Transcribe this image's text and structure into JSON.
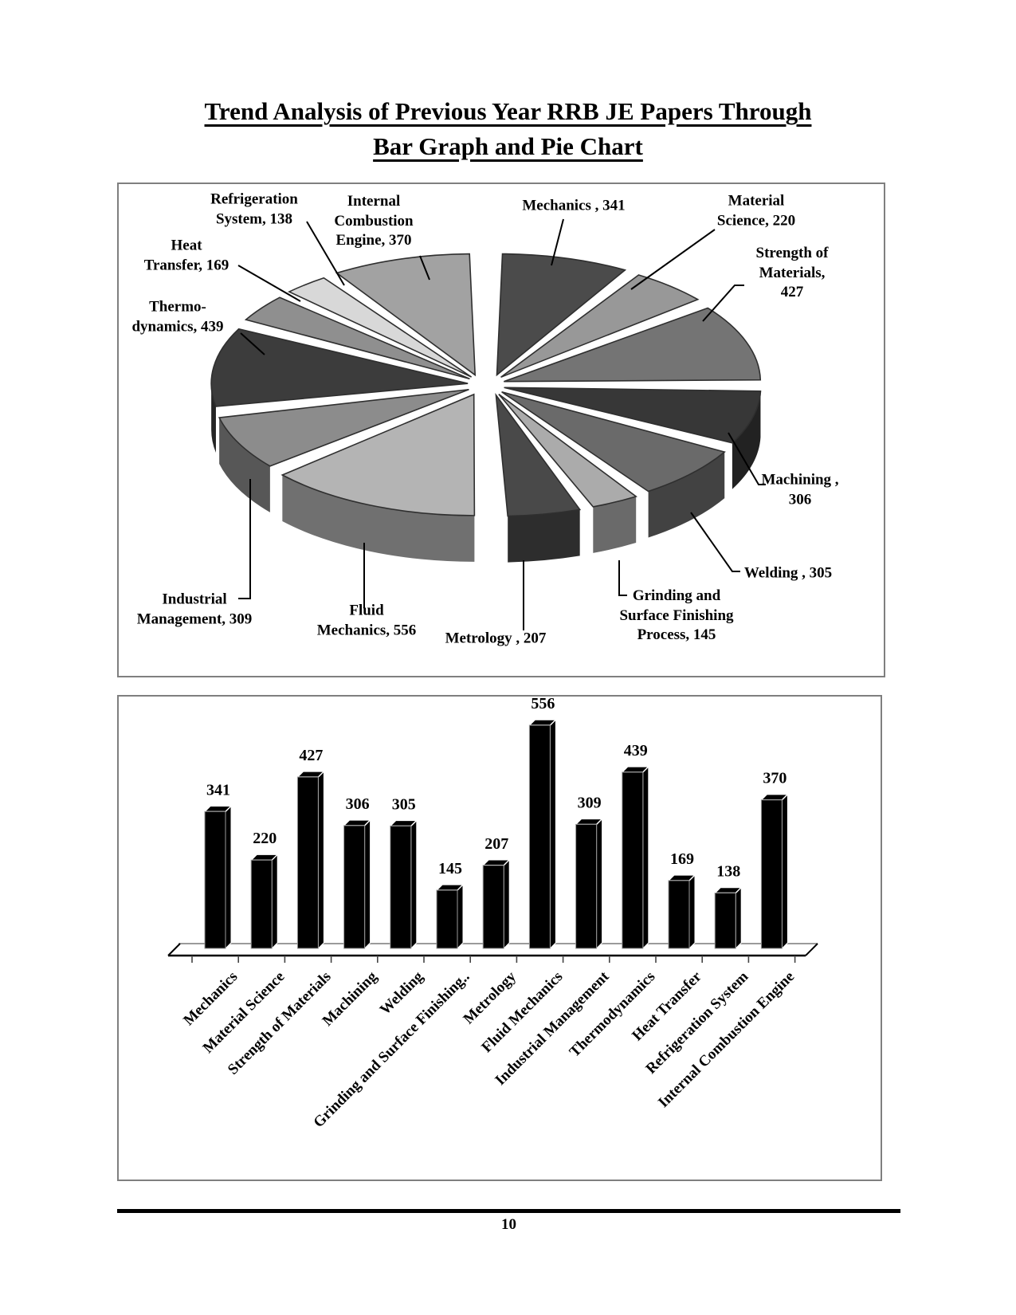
{
  "page": {
    "title_line_1": "Trend Analysis of Previous Year RRB JE Papers Through",
    "title_line_2": "Bar Graph and Pie Chart",
    "page_number": "10"
  },
  "chart_data": [
    {
      "type": "pie",
      "title": "Trend Analysis of Previous Year RRB JE Papers - Pie Chart",
      "categories": [
        "Mechanics",
        "Material Science",
        "Strength of Materials",
        "Machining",
        "Welding",
        "Grinding and Surface Finishing Process",
        "Metrology",
        "Fluid Mechanics",
        "Industrial Management",
        "Thermodynamics",
        "Heat Transfer",
        "Refrigeration System",
        "Internal Combustion Engine"
      ],
      "values": [
        341,
        220,
        427,
        306,
        305,
        145,
        207,
        556,
        309,
        439,
        169,
        138,
        370
      ],
      "slice_colors": [
        "#4b4b4b",
        "#989898",
        "#747474",
        "#373737",
        "#6a6a6a",
        "#ababab",
        "#494949",
        "#b4b4b4",
        "#8c8c8c",
        "#3c3c3c",
        "#8f8f8f",
        "#d8d8d8",
        "#a2a2a2"
      ],
      "callouts": [
        {
          "lines": [
            "Mechanics , 341"
          ]
        },
        {
          "lines": [
            "Material",
            "Science, 220"
          ]
        },
        {
          "lines": [
            "Strength of",
            "Materials, 427"
          ]
        },
        {
          "lines": [
            "Machining ,",
            "306"
          ]
        },
        {
          "lines": [
            "Welding , 305"
          ]
        },
        {
          "lines": [
            "Grinding and",
            "Surface Finishing",
            "Process, 145"
          ]
        },
        {
          "lines": [
            "Metrology , 207"
          ]
        },
        {
          "lines": [
            "Fluid",
            "Mechanics, 556"
          ]
        },
        {
          "lines": [
            "Industrial",
            "Management, 309"
          ]
        },
        {
          "lines": [
            "Thermo-",
            "dynamics, 439"
          ]
        },
        {
          "lines": [
            "Heat",
            "Transfer, 169"
          ]
        },
        {
          "lines": [
            "Refrigeration",
            "System, 138"
          ]
        },
        {
          "lines": [
            "Internal",
            "Combustion",
            "Engine, 370"
          ]
        }
      ],
      "legend": "none",
      "effect": "3d-exploded-grayscale"
    },
    {
      "type": "bar",
      "title": "Trend Analysis of Previous Year RRB JE Papers - Bar Graph",
      "categories": [
        "Mechanics",
        "Material Science",
        "Strength of Materials",
        "Machining",
        "Welding",
        "Grinding and Surface Finishing..",
        "Metrology",
        "Fluid Mechanics",
        "Industrial Management",
        "Thermodynamics",
        "Heat Transfer",
        "Refrigeration System",
        "Internal Combustion Engine"
      ],
      "values": [
        341,
        220,
        427,
        306,
        305,
        145,
        207,
        556,
        309,
        439,
        169,
        138,
        370
      ],
      "value_labels": [
        "341",
        "220",
        "427",
        "306",
        "305",
        "145",
        "207",
        "556",
        "309",
        "439",
        "169",
        "138",
        "370"
      ],
      "bar_color": "#000000",
      "axis_color": "#000000",
      "floor_line_color": "#9a9a9a",
      "ylim": [
        0,
        600
      ],
      "grid": "off",
      "xlabel": "",
      "ylabel": "",
      "effect": "3d-black-columns"
    }
  ]
}
